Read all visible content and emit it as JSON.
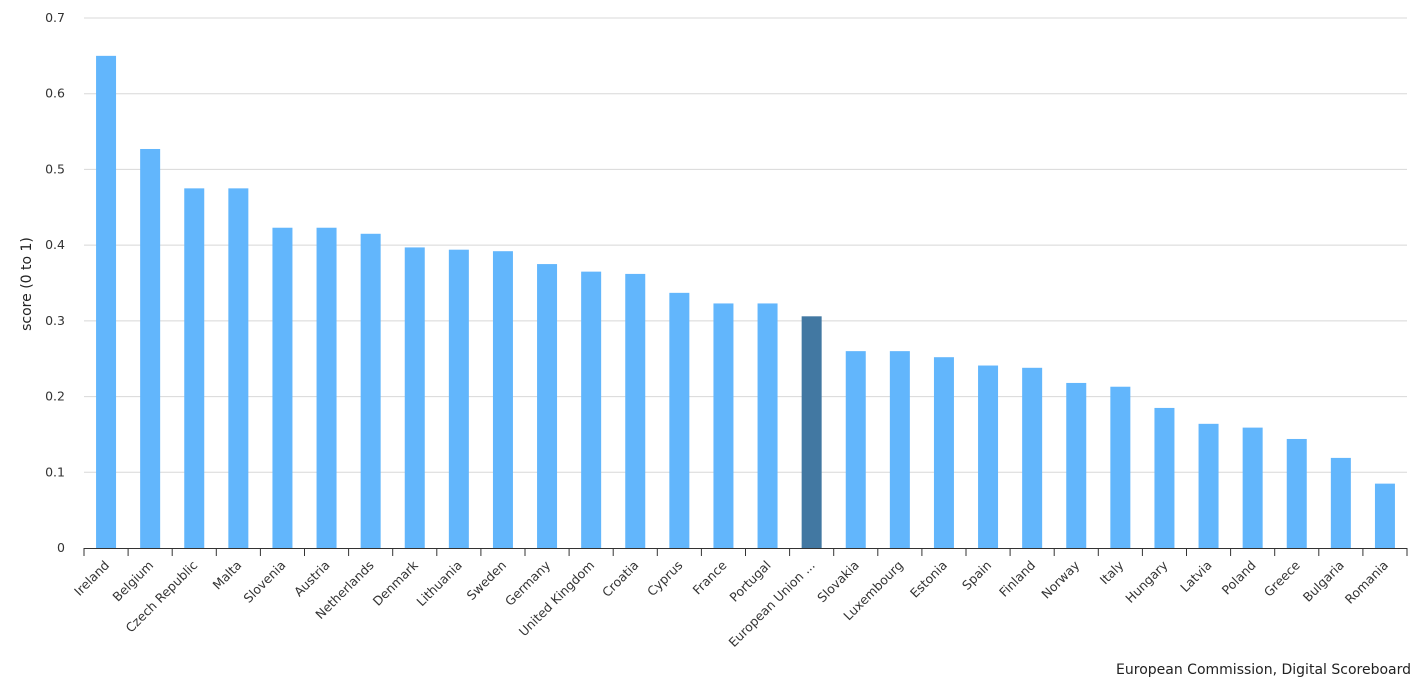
{
  "chart_data": {
    "type": "bar",
    "title": "",
    "xlabel": "",
    "ylabel": "score (0 to 1)",
    "ylim": [
      0,
      0.7
    ],
    "yticks": [
      0,
      0.1,
      0.2,
      0.3,
      0.4,
      0.5,
      0.6,
      0.7
    ],
    "grid": true,
    "categories": [
      "Ireland",
      "Belgium",
      "Czech Republic",
      "Malta",
      "Slovenia",
      "Austria",
      "Netherlands",
      "Denmark",
      "Lithuania",
      "Sweden",
      "Germany",
      "United Kingdom",
      "Croatia",
      "Cyprus",
      "France",
      "Portugal",
      "European Union ...",
      "Slovakia",
      "Luxembourg",
      "Estonia",
      "Spain",
      "Finland",
      "Norway",
      "Italy",
      "Hungary",
      "Latvia",
      "Poland",
      "Greece",
      "Bulgaria",
      "Romania"
    ],
    "values": [
      0.65,
      0.527,
      0.475,
      0.475,
      0.423,
      0.423,
      0.415,
      0.397,
      0.394,
      0.392,
      0.375,
      0.365,
      0.362,
      0.337,
      0.323,
      0.323,
      0.306,
      0.26,
      0.26,
      0.252,
      0.241,
      0.238,
      0.218,
      0.213,
      0.185,
      0.164,
      0.159,
      0.144,
      0.119,
      0.085
    ],
    "highlight_index": 16,
    "colors": {
      "bar": "#62b6fc",
      "highlight": "#4278a2",
      "grid": "#d8d8d8",
      "axis": "#333333"
    },
    "credit": "European Commission, Digital Scoreboard"
  }
}
